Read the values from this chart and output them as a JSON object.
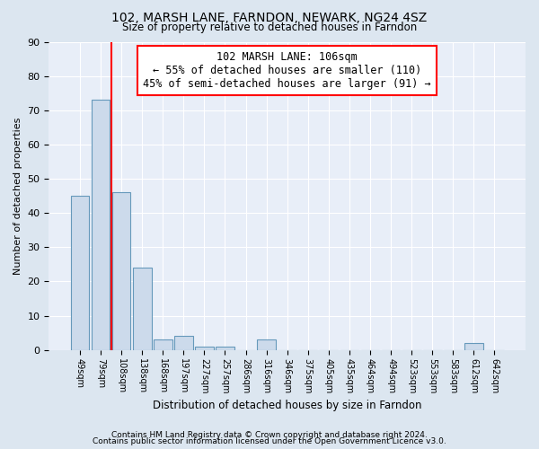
{
  "title1": "102, MARSH LANE, FARNDON, NEWARK, NG24 4SZ",
  "title2": "Size of property relative to detached houses in Farndon",
  "xlabel": "Distribution of detached houses by size in Farndon",
  "ylabel": "Number of detached properties",
  "footer1": "Contains HM Land Registry data © Crown copyright and database right 2024.",
  "footer2": "Contains public sector information licensed under the Open Government Licence v3.0.",
  "bin_labels": [
    "49sqm",
    "79sqm",
    "108sqm",
    "138sqm",
    "168sqm",
    "197sqm",
    "227sqm",
    "257sqm",
    "286sqm",
    "316sqm",
    "346sqm",
    "375sqm",
    "405sqm",
    "435sqm",
    "464sqm",
    "494sqm",
    "523sqm",
    "553sqm",
    "583sqm",
    "612sqm",
    "642sqm"
  ],
  "bar_values": [
    45,
    73,
    46,
    24,
    3,
    4,
    1,
    1,
    0,
    3,
    0,
    0,
    0,
    0,
    0,
    0,
    0,
    0,
    0,
    2,
    0
  ],
  "bar_color": "#ccdaeb",
  "bar_edge_color": "#6699bb",
  "vline_color": "red",
  "vline_bar_index": 2,
  "ylim": [
    0,
    90
  ],
  "yticks": [
    0,
    10,
    20,
    30,
    40,
    50,
    60,
    70,
    80,
    90
  ],
  "annotation_line1": "102 MARSH LANE: 106sqm",
  "annotation_line2": "← 55% of detached houses are smaller (110)",
  "annotation_line3": "45% of semi-detached houses are larger (91) →",
  "annotation_box_color": "white",
  "annotation_box_edge": "red",
  "bg_color": "#dce6f0",
  "plot_bg_color": "#e8eef8",
  "grid_color": "#ffffff"
}
